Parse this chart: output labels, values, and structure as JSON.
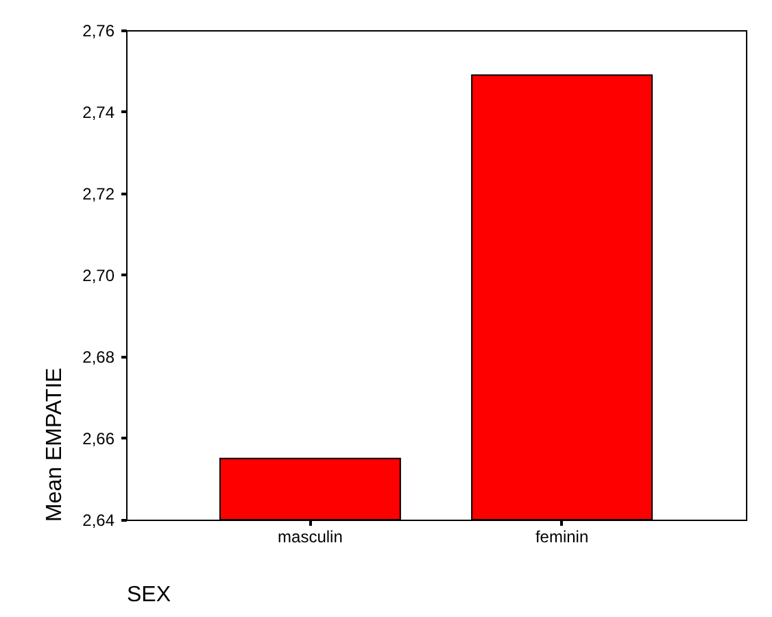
{
  "chart_data": {
    "type": "bar",
    "xlabel": "SEX",
    "ylabel": "Mean EMPATIE",
    "categories": [
      "masculin",
      "feminin"
    ],
    "values": [
      2.655,
      2.749
    ],
    "color": "#ff0000",
    "ylim": [
      2.64,
      2.76
    ],
    "yticks": [
      {
        "value": 2.64,
        "label": "2,64"
      },
      {
        "value": 2.66,
        "label": "2,66"
      },
      {
        "value": 2.68,
        "label": "2,68"
      },
      {
        "value": 2.7,
        "label": "2,70"
      },
      {
        "value": 2.72,
        "label": "2,72"
      },
      {
        "value": 2.74,
        "label": "2,74"
      },
      {
        "value": 2.76,
        "label": "2,76"
      }
    ]
  }
}
